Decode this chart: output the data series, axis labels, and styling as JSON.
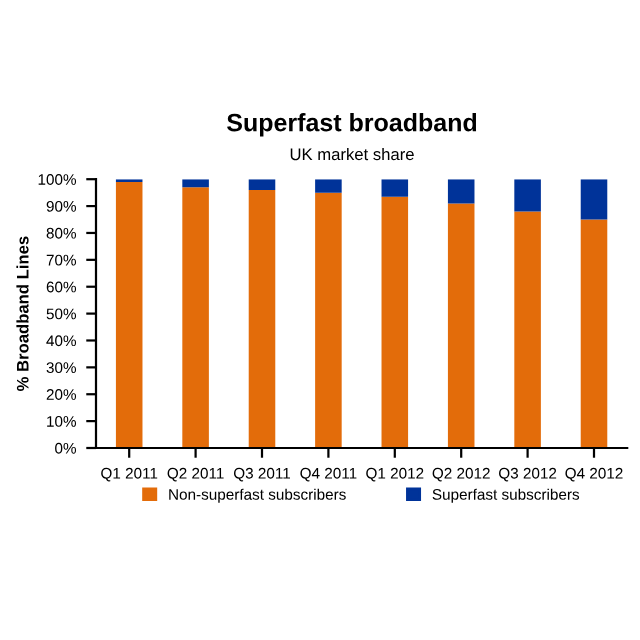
{
  "chart_data": {
    "type": "bar",
    "title": "Superfast broadband",
    "subtitle": "UK market share",
    "ylabel": "% Broadband Lines",
    "categories": [
      "Q1 2011",
      "Q2 2011",
      "Q3 2011",
      "Q4 2011",
      "Q1 2012",
      "Q2 2012",
      "Q3 2012",
      "Q4 2012"
    ],
    "series": [
      {
        "name": "Non-superfast subscribers",
        "color": "#e36c0a",
        "values": [
          99,
          97,
          96,
          95,
          93.5,
          91,
          88,
          85
        ]
      },
      {
        "name": "Superfast subscribers",
        "color": "#003399",
        "values": [
          1,
          3,
          4,
          5,
          6.5,
          9,
          12,
          15
        ]
      }
    ],
    "stacked": true,
    "ylim": [
      0,
      100
    ],
    "yticks": [
      {
        "value": 0,
        "label": "0%"
      },
      {
        "value": 10,
        "label": "10%"
      },
      {
        "value": 20,
        "label": "20%"
      },
      {
        "value": 30,
        "label": "30%"
      },
      {
        "value": 40,
        "label": "40%"
      },
      {
        "value": 50,
        "label": "50%"
      },
      {
        "value": 60,
        "label": "60%"
      },
      {
        "value": 70,
        "label": "70%"
      },
      {
        "value": 80,
        "label": "80%"
      },
      {
        "value": 90,
        "label": "90%"
      },
      {
        "value": 100,
        "label": "100%"
      }
    ],
    "grid": false,
    "legend": "bottom"
  }
}
